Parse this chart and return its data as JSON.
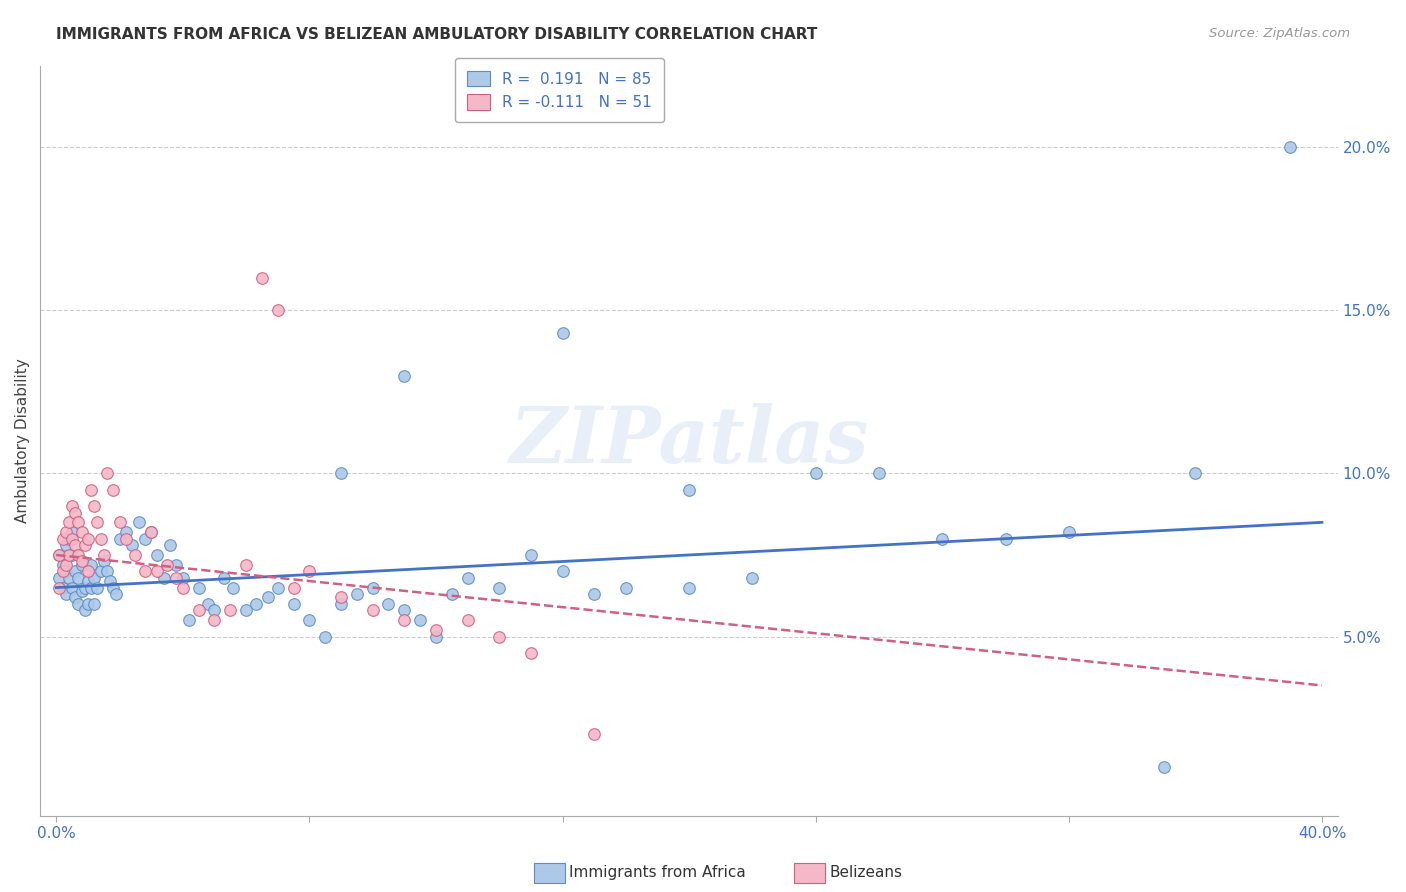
{
  "title": "IMMIGRANTS FROM AFRICA VS BELIZEAN AMBULATORY DISABILITY CORRELATION CHART",
  "source": "Source: ZipAtlas.com",
  "ylabel": "Ambulatory Disability",
  "xlim": [
    -0.005,
    0.405
  ],
  "ylim": [
    -0.005,
    0.225
  ],
  "xticks": [
    0.0,
    0.08,
    0.16,
    0.24,
    0.32,
    0.4
  ],
  "xtick_labels_show": [
    "0.0%",
    "",
    "",
    "",
    "",
    "40.0%"
  ],
  "yticks_right": [
    0.05,
    0.1,
    0.15,
    0.2
  ],
  "ytick_labels_right": [
    "5.0%",
    "10.0%",
    "15.0%",
    "20.0%"
  ],
  "legend_r1": "R =  0.191",
  "legend_n1": "N = 85",
  "legend_r2": "R = -0.111",
  "legend_n2": "N = 51",
  "blue_color": "#aec8e8",
  "blue_edge": "#5b8ec4",
  "blue_line": "#4472c4",
  "pink_color": "#f4b8c8",
  "pink_edge": "#d06080",
  "pink_line": "#d06080",
  "watermark": "ZIPatlas",
  "background": "#ffffff",
  "grid_color": "#cccccc",
  "blue_x": [
    0.001,
    0.001,
    0.002,
    0.002,
    0.003,
    0.003,
    0.003,
    0.004,
    0.004,
    0.005,
    0.005,
    0.005,
    0.006,
    0.006,
    0.007,
    0.007,
    0.008,
    0.008,
    0.009,
    0.009,
    0.01,
    0.01,
    0.011,
    0.011,
    0.012,
    0.012,
    0.013,
    0.014,
    0.015,
    0.016,
    0.017,
    0.018,
    0.019,
    0.02,
    0.022,
    0.024,
    0.026,
    0.028,
    0.03,
    0.032,
    0.034,
    0.036,
    0.038,
    0.04,
    0.042,
    0.045,
    0.048,
    0.05,
    0.053,
    0.056,
    0.06,
    0.063,
    0.067,
    0.07,
    0.075,
    0.08,
    0.085,
    0.09,
    0.095,
    0.1,
    0.105,
    0.11,
    0.115,
    0.12,
    0.125,
    0.13,
    0.14,
    0.15,
    0.16,
    0.17,
    0.18,
    0.2,
    0.22,
    0.24,
    0.26,
    0.28,
    0.3,
    0.32,
    0.36,
    0.39,
    0.09,
    0.11,
    0.16,
    0.2,
    0.35
  ],
  "blue_y": [
    0.075,
    0.068,
    0.072,
    0.065,
    0.078,
    0.07,
    0.063,
    0.08,
    0.068,
    0.082,
    0.075,
    0.065,
    0.07,
    0.062,
    0.068,
    0.06,
    0.072,
    0.064,
    0.065,
    0.058,
    0.067,
    0.06,
    0.072,
    0.065,
    0.068,
    0.06,
    0.065,
    0.07,
    0.073,
    0.07,
    0.067,
    0.065,
    0.063,
    0.08,
    0.082,
    0.078,
    0.085,
    0.08,
    0.082,
    0.075,
    0.068,
    0.078,
    0.072,
    0.068,
    0.055,
    0.065,
    0.06,
    0.058,
    0.068,
    0.065,
    0.058,
    0.06,
    0.062,
    0.065,
    0.06,
    0.055,
    0.05,
    0.06,
    0.063,
    0.065,
    0.06,
    0.058,
    0.055,
    0.05,
    0.063,
    0.068,
    0.065,
    0.075,
    0.07,
    0.063,
    0.065,
    0.065,
    0.068,
    0.1,
    0.1,
    0.08,
    0.08,
    0.082,
    0.1,
    0.2,
    0.1,
    0.13,
    0.143,
    0.095,
    0.01
  ],
  "pink_x": [
    0.001,
    0.001,
    0.002,
    0.002,
    0.003,
    0.003,
    0.004,
    0.004,
    0.005,
    0.005,
    0.006,
    0.006,
    0.007,
    0.007,
    0.008,
    0.008,
    0.009,
    0.01,
    0.01,
    0.011,
    0.012,
    0.013,
    0.014,
    0.015,
    0.016,
    0.018,
    0.02,
    0.022,
    0.025,
    0.028,
    0.03,
    0.032,
    0.035,
    0.038,
    0.04,
    0.045,
    0.05,
    0.055,
    0.06,
    0.065,
    0.07,
    0.075,
    0.08,
    0.09,
    0.1,
    0.11,
    0.12,
    0.13,
    0.14,
    0.15,
    0.17
  ],
  "pink_y": [
    0.075,
    0.065,
    0.08,
    0.07,
    0.082,
    0.072,
    0.085,
    0.075,
    0.09,
    0.08,
    0.088,
    0.078,
    0.085,
    0.075,
    0.082,
    0.073,
    0.078,
    0.08,
    0.07,
    0.095,
    0.09,
    0.085,
    0.08,
    0.075,
    0.1,
    0.095,
    0.085,
    0.08,
    0.075,
    0.07,
    0.082,
    0.07,
    0.072,
    0.068,
    0.065,
    0.058,
    0.055,
    0.058,
    0.072,
    0.16,
    0.15,
    0.065,
    0.07,
    0.062,
    0.058,
    0.055,
    0.052,
    0.055,
    0.05,
    0.045,
    0.02
  ]
}
